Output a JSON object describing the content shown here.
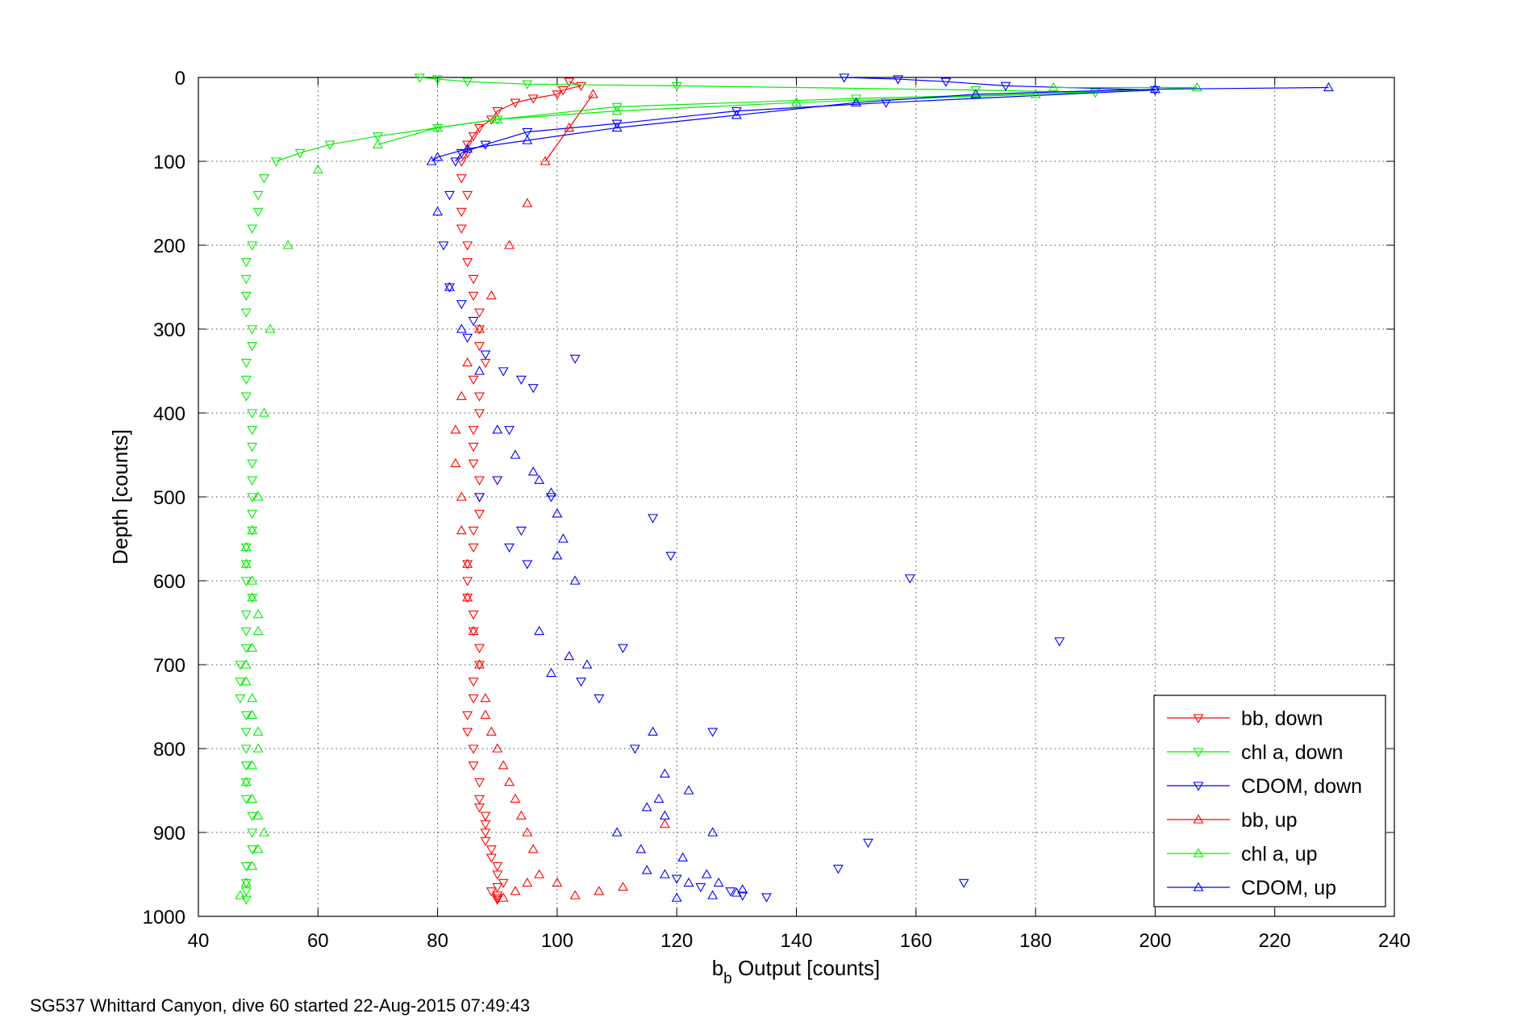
{
  "chart_data": {
    "type": "scatter",
    "title": "",
    "caption": "SG537 Whittard Canyon, dive 60 started 22-Aug-2015 07:49:43",
    "xlabel_main": "b",
    "xlabel_sub": "b",
    "xlabel_rest": " Output [counts]",
    "ylabel": "Depth [counts]",
    "xlim": [
      40,
      240
    ],
    "ylim": [
      0,
      1000
    ],
    "y_reversed": true,
    "grid": true,
    "legend_position": "bottom-right",
    "x_ticks": [
      40,
      60,
      80,
      100,
      120,
      140,
      160,
      180,
      200,
      220,
      240
    ],
    "y_ticks": [
      0,
      100,
      200,
      300,
      400,
      500,
      600,
      700,
      800,
      900,
      1000
    ],
    "x_tick_labels": [
      "40",
      "60",
      "80",
      "100",
      "120",
      "140",
      "160",
      "180",
      "200",
      "220",
      "240"
    ],
    "y_tick_labels": [
      "0",
      "100",
      "200",
      "300",
      "400",
      "500",
      "600",
      "700",
      "800",
      "900",
      "1000"
    ],
    "series": [
      {
        "name": "bb, down",
        "color": "#ff0000",
        "marker": "triangle-down",
        "x": [
          102,
          104,
          101,
          100,
          96,
          93,
          90,
          89,
          87,
          86,
          85,
          85,
          84,
          84,
          85,
          84,
          84,
          85,
          85,
          86,
          86,
          87,
          87,
          87,
          88,
          86,
          87,
          87,
          86,
          86,
          86,
          87,
          87,
          87,
          86,
          86,
          85,
          85,
          85,
          86,
          86,
          87,
          87,
          86,
          86,
          85,
          85,
          86,
          86,
          87,
          87,
          87,
          88,
          88,
          88,
          88,
          89,
          89,
          90,
          90,
          91,
          90,
          89,
          90,
          90,
          90
        ],
        "y": [
          5,
          10,
          15,
          20,
          25,
          30,
          40,
          50,
          60,
          70,
          80,
          90,
          100,
          120,
          140,
          160,
          180,
          200,
          220,
          240,
          260,
          280,
          300,
          320,
          340,
          360,
          380,
          400,
          420,
          440,
          460,
          480,
          500,
          520,
          540,
          560,
          580,
          600,
          620,
          640,
          660,
          680,
          700,
          720,
          740,
          760,
          780,
          800,
          820,
          840,
          860,
          870,
          880,
          890,
          900,
          910,
          920,
          930,
          940,
          950,
          960,
          965,
          970,
          975,
          978,
          980
        ]
      },
      {
        "name": "chl a, down",
        "color": "#00ee00",
        "marker": "triangle-down",
        "x": [
          77,
          80,
          85,
          95,
          120,
          170,
          190,
          150,
          110,
          90,
          80,
          70,
          62,
          57,
          53,
          51,
          50,
          50,
          49,
          49,
          48,
          48,
          48,
          48,
          49,
          49,
          48,
          48,
          48,
          49,
          49,
          49,
          49,
          49,
          49,
          49,
          49,
          48,
          48,
          48,
          49,
          48,
          48,
          48,
          47,
          47,
          47,
          48,
          48,
          48,
          48,
          48,
          48,
          49,
          49,
          49,
          48,
          48,
          48,
          48
        ],
        "y": [
          0,
          2,
          5,
          8,
          10,
          15,
          18,
          25,
          35,
          50,
          60,
          70,
          80,
          90,
          100,
          120,
          140,
          160,
          180,
          200,
          220,
          240,
          260,
          280,
          300,
          320,
          340,
          360,
          380,
          400,
          420,
          440,
          460,
          480,
          500,
          520,
          540,
          560,
          580,
          600,
          620,
          640,
          660,
          680,
          700,
          720,
          740,
          760,
          780,
          800,
          820,
          840,
          860,
          880,
          900,
          920,
          940,
          960,
          970,
          980
        ]
      },
      {
        "name": "CDOM, down",
        "color": "#0000ff",
        "marker": "triangle-down",
        "x": [
          148,
          157,
          165,
          175,
          200,
          155,
          130,
          110,
          95,
          88,
          84,
          83,
          82,
          81,
          82,
          84,
          86,
          85,
          88,
          91,
          94,
          96,
          103,
          92,
          90,
          87,
          94,
          92,
          95,
          99,
          116,
          119,
          159,
          184,
          104,
          107,
          111,
          126,
          113,
          152,
          147,
          168,
          129,
          131,
          135,
          124,
          120
        ],
        "y": [
          0,
          2,
          5,
          10,
          15,
          30,
          40,
          55,
          65,
          80,
          90,
          100,
          140,
          200,
          250,
          270,
          290,
          310,
          330,
          350,
          360,
          370,
          335,
          420,
          480,
          500,
          540,
          560,
          580,
          500,
          525,
          570,
          597,
          672,
          720,
          740,
          680,
          780,
          800,
          912,
          943,
          960,
          970,
          975,
          977,
          965,
          955
        ]
      },
      {
        "name": "bb, up",
        "color": "#ff0000",
        "marker": "triangle-up",
        "x": [
          91,
          93,
          95,
          97,
          100,
          103,
          107,
          111,
          118,
          96,
          95,
          94,
          93,
          92,
          91,
          90,
          89,
          88,
          88,
          87,
          86,
          85,
          85,
          84,
          84,
          83,
          83,
          84,
          85,
          87,
          89,
          92,
          95,
          98,
          102,
          106
        ],
        "y": [
          978,
          970,
          960,
          950,
          960,
          975,
          970,
          965,
          890,
          920,
          900,
          880,
          860,
          840,
          820,
          800,
          780,
          760,
          740,
          700,
          660,
          620,
          580,
          540,
          500,
          460,
          420,
          380,
          340,
          300,
          260,
          200,
          150,
          100,
          60,
          20
        ]
      },
      {
        "name": "chl a, up",
        "color": "#00ee00",
        "marker": "triangle-up",
        "x": [
          47,
          48,
          49,
          50,
          51,
          50,
          49,
          48,
          49,
          50,
          50,
          49,
          49,
          48,
          48,
          49,
          50,
          50,
          49,
          49,
          48,
          48,
          49,
          50,
          51,
          52,
          55,
          60,
          70,
          80,
          90,
          110,
          140,
          180,
          207,
          183
        ],
        "y": [
          975,
          960,
          940,
          920,
          900,
          880,
          860,
          840,
          820,
          800,
          780,
          760,
          740,
          720,
          700,
          680,
          660,
          640,
          620,
          600,
          580,
          560,
          540,
          500,
          400,
          300,
          200,
          110,
          80,
          60,
          50,
          40,
          30,
          20,
          12,
          12
        ]
      },
      {
        "name": "CDOM, up",
        "color": "#0000ff",
        "marker": "triangle-up",
        "x": [
          229,
          200,
          170,
          150,
          130,
          110,
          95,
          85,
          80,
          79,
          80,
          82,
          84,
          87,
          90,
          93,
          96,
          97,
          99,
          100,
          101,
          100,
          103,
          97,
          102,
          105,
          99,
          116,
          118,
          122,
          117,
          115,
          126,
          118,
          110,
          114,
          121,
          125,
          127,
          131,
          130,
          126,
          120,
          122,
          118,
          115
        ],
        "y": [
          12,
          14,
          20,
          30,
          45,
          60,
          75,
          85,
          95,
          100,
          160,
          250,
          300,
          350,
          420,
          450,
          470,
          480,
          495,
          520,
          550,
          570,
          600,
          660,
          690,
          700,
          710,
          780,
          830,
          850,
          860,
          870,
          900,
          880,
          900,
          920,
          930,
          950,
          960,
          968,
          972,
          975,
          978,
          960,
          950,
          945
        ]
      }
    ]
  }
}
